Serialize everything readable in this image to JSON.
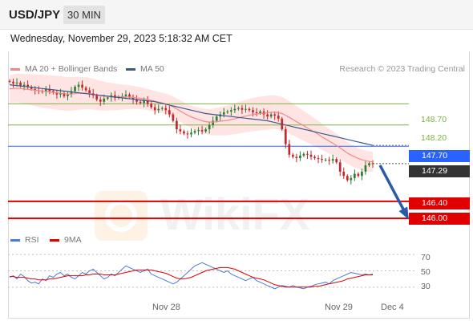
{
  "header": {
    "symbol": "USD/JPY",
    "timeframe": "30 MIN",
    "datetime": "Wednesday, November 29, 2023 5:18:32 AM CET"
  },
  "legend": {
    "ma20_label": "MA 20 + Bollinger Bands",
    "ma50_label": "MA 50",
    "credit": "Research © 2023 Trading Central",
    "rsi_label": "RSI",
    "ma9_label": "9MA"
  },
  "colors": {
    "ma20": "#f08a8a",
    "ma50": "#3a5a8c",
    "bollinger": "#ffd9d9",
    "resistance": "#7cb342",
    "pivot": "#2962ff",
    "support": "#e00000",
    "bull": "#2e7d32",
    "bear": "#c62828",
    "rsi": "#4a7bd6",
    "rsi_ma": "#e00000"
  },
  "levels": {
    "r2": "148.70",
    "r1": "148.20",
    "pivot": "147.70",
    "last": "147.29",
    "s1": "146.40",
    "s2": "146.00"
  },
  "x_labels": {
    "d1": "Nov 28",
    "d2": "Nov 29",
    "d3": "Dec 4"
  },
  "rsi_levels": {
    "h": "70",
    "m": "50",
    "l": "30"
  },
  "chart_data": {
    "type": "line",
    "title": "USD/JPY",
    "timeframe": "30 MIN",
    "y_range": [
      145.85,
      149.35
    ],
    "x_ticks": [
      "Nov 28",
      "Nov 29",
      "Dec 4"
    ],
    "close": [
      149.22,
      149.18,
      149.2,
      149.12,
      149.15,
      149.1,
      149.05,
      149.02,
      149.0,
      148.98,
      149.05,
      149.0,
      148.96,
      148.92,
      148.95,
      148.88,
      148.92,
      149.0,
      149.1,
      149.15,
      149.08,
      149.02,
      148.95,
      148.9,
      148.8,
      148.75,
      148.82,
      148.85,
      148.9,
      148.84,
      148.86,
      148.88,
      148.92,
      148.85,
      148.8,
      148.75,
      148.72,
      148.78,
      148.7,
      148.62,
      148.55,
      148.58,
      148.6,
      148.55,
      148.45,
      148.3,
      148.1,
      148.05,
      148.0,
      147.98,
      148.02,
      148.06,
      148.08,
      148.05,
      148.1,
      148.2,
      148.3,
      148.4,
      148.45,
      148.5,
      148.52,
      148.55,
      148.58,
      148.6,
      148.56,
      148.58,
      148.55,
      148.5,
      148.48,
      148.52,
      148.45,
      148.4,
      148.45,
      148.42,
      148.35,
      148.1,
      147.75,
      147.5,
      147.45,
      147.42,
      147.48,
      147.52,
      147.5,
      147.45,
      147.42,
      147.4,
      147.38,
      147.38,
      147.36,
      147.4,
      147.32,
      147.1,
      147.0,
      146.9,
      146.95,
      147.05,
      147.0,
      147.1,
      147.25,
      147.3,
      147.29
    ],
    "ma20": [
      149.05,
      149.06,
      149.07,
      149.06,
      149.05,
      149.04,
      149.03,
      149.02,
      149.01,
      149.0,
      148.99,
      148.98,
      148.97,
      148.96,
      148.95,
      148.94,
      148.93,
      148.93,
      148.94,
      148.95,
      148.95,
      148.95,
      148.94,
      148.93,
      148.91,
      148.89,
      148.88,
      148.87,
      148.87,
      148.86,
      148.86,
      148.86,
      148.86,
      148.86,
      148.85,
      148.84,
      148.83,
      148.82,
      148.8,
      148.78,
      148.76,
      148.74,
      148.72,
      148.7,
      148.67,
      148.63,
      148.58,
      148.53,
      148.48,
      148.43,
      148.39,
      148.36,
      148.33,
      148.3,
      148.28,
      148.27,
      148.27,
      148.28,
      148.29,
      148.3,
      148.31,
      148.33,
      148.35,
      148.37,
      148.39,
      148.41,
      148.43,
      148.45,
      148.46,
      148.47,
      148.48,
      148.49,
      148.5,
      148.5,
      148.49,
      148.47,
      148.43,
      148.38,
      148.33,
      148.28,
      148.23,
      148.18,
      148.13,
      148.08,
      148.03,
      147.98,
      147.92,
      147.87,
      147.82,
      147.77,
      147.72,
      147.66,
      147.6,
      147.54,
      147.49,
      147.45,
      147.41,
      147.38,
      147.36,
      147.34,
      147.33
    ],
    "ma50": [
      149.15,
      149.14,
      149.13,
      149.12,
      149.11,
      149.1,
      149.09,
      149.08,
      149.07,
      149.06,
      149.05,
      149.04,
      149.03,
      149.02,
      149.01,
      149.0,
      148.99,
      148.98,
      148.97,
      148.96,
      148.95,
      148.94,
      148.93,
      148.92,
      148.91,
      148.9,
      148.89,
      148.88,
      148.87,
      148.86,
      148.85,
      148.84,
      148.83,
      148.82,
      148.81,
      148.8,
      148.79,
      148.78,
      148.77,
      148.76,
      148.75,
      148.73,
      148.71,
      148.69,
      148.67,
      148.65,
      148.63,
      148.61,
      148.59,
      148.57,
      148.55,
      148.53,
      148.51,
      148.49,
      148.47,
      148.46,
      148.45,
      148.44,
      148.43,
      148.42,
      148.41,
      148.4,
      148.39,
      148.38,
      148.37,
      148.36,
      148.35,
      148.34,
      148.33,
      148.32,
      148.31,
      148.3,
      148.28,
      148.26,
      148.24,
      148.22,
      148.2,
      148.18,
      148.16,
      148.14,
      148.12,
      148.1,
      148.08,
      148.06,
      148.04,
      148.02,
      148.0,
      147.98,
      147.96,
      147.94,
      147.92,
      147.9,
      147.88,
      147.86,
      147.84,
      147.82,
      147.8,
      147.78,
      147.76,
      147.74,
      147.72
    ],
    "levels": [
      {
        "name": "resistance",
        "value": 148.7
      },
      {
        "name": "resistance",
        "value": 148.2
      },
      {
        "name": "pivot",
        "value": 147.7
      },
      {
        "name": "last",
        "value": 147.29
      },
      {
        "name": "support",
        "value": 146.4
      },
      {
        "name": "support",
        "value": 146.0
      }
    ],
    "forecast_arrow": {
      "from": 147.29,
      "to": 146.0
    },
    "rsi": {
      "levels": [
        70,
        50,
        30
      ],
      "range": [
        20,
        75
      ],
      "rsi": [
        42,
        44,
        40,
        46,
        43,
        38,
        35,
        36,
        34,
        40,
        38,
        44,
        42,
        46,
        48,
        44,
        46,
        42,
        40,
        44,
        48,
        46,
        50,
        52,
        48,
        44,
        40,
        42,
        46,
        44,
        48,
        52,
        56,
        54,
        52,
        50,
        48,
        50,
        52,
        46,
        44,
        42,
        40,
        38,
        36,
        34,
        36,
        40,
        44,
        48,
        52,
        56,
        58,
        60,
        58,
        56,
        54,
        52,
        50,
        48,
        50,
        46,
        44,
        42,
        40,
        38,
        40,
        42,
        38,
        36,
        34,
        32,
        30,
        28,
        30,
        32,
        31,
        30,
        32,
        30,
        29,
        28,
        30,
        31,
        33,
        34,
        35,
        36,
        34,
        38,
        40,
        42,
        44,
        46,
        48,
        47,
        46,
        45,
        46,
        45,
        46
      ],
      "ma9": [
        43,
        43,
        42,
        42,
        42,
        41,
        40,
        40,
        39,
        39,
        39,
        40,
        40,
        41,
        42,
        43,
        44,
        44,
        44,
        44,
        44,
        45,
        45,
        46,
        46,
        46,
        45,
        45,
        45,
        45,
        46,
        47,
        48,
        49,
        50,
        51,
        51,
        51,
        51,
        51,
        50,
        49,
        48,
        47,
        45,
        43,
        41,
        40,
        40,
        41,
        42,
        44,
        46,
        48,
        50,
        51,
        52,
        53,
        54,
        54,
        54,
        53,
        52,
        50,
        48,
        46,
        44,
        42,
        41,
        40,
        39,
        37,
        35,
        33,
        32,
        31,
        30,
        30,
        30,
        30,
        30,
        30,
        30,
        30,
        31,
        31,
        32,
        33,
        34,
        35,
        36,
        37,
        38,
        40,
        41,
        42,
        43,
        44,
        45,
        45,
        45
      ]
    }
  }
}
